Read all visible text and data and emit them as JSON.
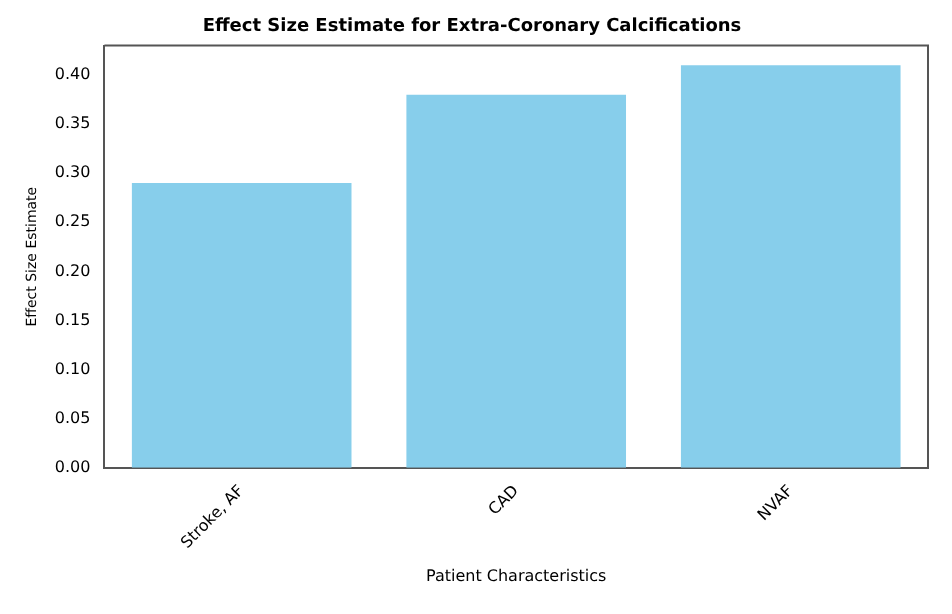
{
  "chart_data": {
    "type": "bar",
    "title": "Effect Size Estimate for Extra-Coronary Calcifications",
    "xlabel": "Patient Characteristics",
    "ylabel": "Effect Size Estimate",
    "categories": [
      "Stroke, AF",
      "CAD",
      "NVAF"
    ],
    "values": [
      0.29,
      0.38,
      0.41
    ],
    "color": "#87ceeb",
    "ylim": [
      0,
      0.43
    ],
    "yticks": [
      {
        "value": 0,
        "label": "0.00"
      },
      {
        "value": 0.05,
        "label": "0.05"
      },
      {
        "value": 0.1,
        "label": "0.10"
      },
      {
        "value": 0.15,
        "label": "0.15"
      },
      {
        "value": 0.2,
        "label": "0.20"
      },
      {
        "value": 0.25,
        "label": "0.25"
      },
      {
        "value": 0.3,
        "label": "0.30"
      },
      {
        "value": 0.35,
        "label": "0.35"
      },
      {
        "value": 0.4,
        "label": "0.40"
      }
    ]
  }
}
